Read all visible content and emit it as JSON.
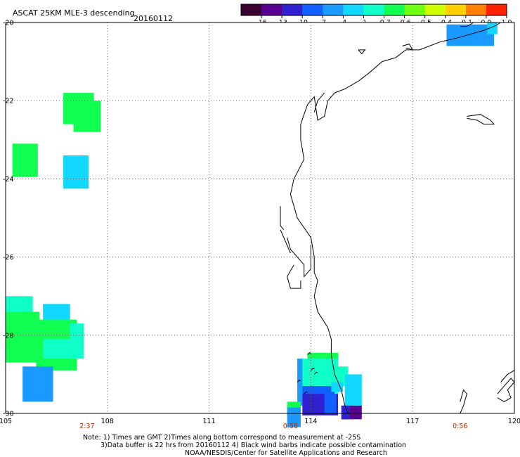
{
  "header": {
    "title": "ASCAT 25KM MLE-3 descending",
    "date": "20160112"
  },
  "colorbar": {
    "colors": [
      "#3a0030",
      "#5a0090",
      "#3020d0",
      "#1060ff",
      "#1a9aff",
      "#10d8ff",
      "#10ffc8",
      "#10ff50",
      "#70ff10",
      "#d0ff00",
      "#ffd000",
      "#ff8000",
      "#ff2000"
    ],
    "labels": [
      "-16",
      "-13",
      "-10",
      "-7",
      "-4",
      "-1",
      "-0.7",
      "-0.6",
      "-0.5",
      "-0.4",
      "-0.1",
      "0.0",
      "1.0"
    ]
  },
  "axes": {
    "lon_ticks": [
      "105",
      "108",
      "111",
      "114",
      "117",
      "120"
    ],
    "lat_ticks": [
      "-20",
      "-22",
      "-24",
      "-26",
      "-28",
      "-30"
    ],
    "lon_range": [
      105,
      120
    ],
    "lat_range": [
      -20,
      -30
    ]
  },
  "pass_times": [
    {
      "label": "2:37",
      "lon": 107.4
    },
    {
      "label": "0:58",
      "lon": 113.4
    },
    {
      "label": "0:56",
      "lon": 118.4
    }
  ],
  "footnote": {
    "line1": "Note: 1) Times are GMT 2)Times along bottom correspond to measurement at -25S",
    "line2": "3)Data buffer is 22 hrs from 20160112 4) Black wind barbs indicate possible contamination",
    "line3": "NOAA/NESDIS/Center for Satellite Applications and Research"
  },
  "data_cells": [
    {
      "lon": 106.7,
      "lat": -21.8,
      "w": 0.9,
      "h": 0.8,
      "color": "#10ff50"
    },
    {
      "lon": 107.0,
      "lat": -22.0,
      "w": 0.8,
      "h": 0.8,
      "color": "#10ff50"
    },
    {
      "lon": 105.2,
      "lat": -23.1,
      "w": 0.75,
      "h": 0.85,
      "color": "#10ff50"
    },
    {
      "lon": 106.7,
      "lat": -23.4,
      "w": 0.75,
      "h": 0.85,
      "color": "#10d8ff"
    },
    {
      "lon": 105.0,
      "lat": -27.0,
      "w": 0.8,
      "h": 0.6,
      "color": "#10ffc8"
    },
    {
      "lon": 105.0,
      "lat": -27.4,
      "w": 1.0,
      "h": 1.3,
      "color": "#10ff50"
    },
    {
      "lon": 106.1,
      "lat": -27.2,
      "w": 0.8,
      "h": 0.45,
      "color": "#10d8ff"
    },
    {
      "lon": 105.9,
      "lat": -27.6,
      "w": 1.2,
      "h": 1.3,
      "color": "#10ff50"
    },
    {
      "lon": 106.9,
      "lat": -27.7,
      "w": 0.4,
      "h": 0.9,
      "color": "#10ffc8"
    },
    {
      "lon": 106.1,
      "lat": -28.1,
      "w": 0.8,
      "h": 0.5,
      "color": "#10ffc8"
    },
    {
      "lon": 105.5,
      "lat": -28.8,
      "w": 0.9,
      "h": 0.9,
      "color": "#1a9aff"
    },
    {
      "lon": 118.0,
      "lat": -20.05,
      "w": 1.4,
      "h": 0.55,
      "color": "#1a9aff"
    },
    {
      "lon": 119.2,
      "lat": -20.0,
      "w": 0.3,
      "h": 0.3,
      "color": "#10d8ff"
    },
    {
      "lon": 113.9,
      "lat": -28.45,
      "w": 0.9,
      "h": 0.25,
      "color": "#10ff50"
    },
    {
      "lon": 113.6,
      "lat": -28.6,
      "w": 1.2,
      "h": 0.95,
      "color": "#10ffc8"
    },
    {
      "lon": 114.5,
      "lat": -28.8,
      "w": 0.6,
      "h": 0.5,
      "color": "#10ffc8"
    },
    {
      "lon": 115.0,
      "lat": -29.0,
      "w": 0.5,
      "h": 0.8,
      "color": "#10d8ff"
    },
    {
      "lon": 113.6,
      "lat": -28.6,
      "w": 0.15,
      "h": 1.2,
      "color": "#1a9aff"
    },
    {
      "lon": 113.75,
      "lat": -29.3,
      "w": 0.95,
      "h": 0.45,
      "color": "#1060ff"
    },
    {
      "lon": 113.75,
      "lat": -29.5,
      "w": 1.05,
      "h": 0.55,
      "color": "#3020d0"
    },
    {
      "lon": 114.6,
      "lat": -29.2,
      "w": 0.35,
      "h": 0.25,
      "color": "#10d8ff"
    },
    {
      "lon": 114.4,
      "lat": -29.5,
      "w": 0.35,
      "h": 0.5,
      "color": "#1060ff"
    },
    {
      "lon": 113.3,
      "lat": -29.7,
      "w": 0.4,
      "h": 0.35,
      "color": "#10ff50"
    },
    {
      "lon": 113.3,
      "lat": -29.85,
      "w": 0.4,
      "h": 0.5,
      "color": "#1a9aff"
    },
    {
      "lon": 114.9,
      "lat": -29.8,
      "w": 0.6,
      "h": 0.35,
      "color": "#5a0090"
    },
    {
      "lon": 114.9,
      "lat": -29.8,
      "w": 0.25,
      "h": 0.35,
      "color": "#3020d0"
    }
  ],
  "coastline": [
    [
      [
        119.6,
        -20.0
      ],
      [
        119.4,
        -20.1
      ],
      [
        119.1,
        -20.2
      ],
      [
        118.7,
        -20.3
      ],
      [
        118.3,
        -20.4
      ],
      [
        117.8,
        -20.5
      ],
      [
        117.5,
        -20.6
      ],
      [
        117.2,
        -20.7
      ],
      [
        116.8,
        -20.7
      ],
      [
        116.5,
        -20.9
      ],
      [
        116.1,
        -21.0
      ],
      [
        115.7,
        -21.3
      ],
      [
        115.4,
        -21.5
      ],
      [
        115.0,
        -21.7
      ],
      [
        114.7,
        -21.8
      ],
      [
        114.5,
        -22.0
      ],
      [
        114.4,
        -22.4
      ],
      [
        114.2,
        -22.5
      ],
      [
        114.1,
        -21.9
      ],
      [
        113.9,
        -22.1
      ],
      [
        113.7,
        -22.6
      ],
      [
        113.7,
        -23.0
      ],
      [
        113.8,
        -23.5
      ],
      [
        113.5,
        -24.0
      ],
      [
        113.4,
        -24.4
      ],
      [
        113.5,
        -24.7
      ],
      [
        113.6,
        -25.0
      ],
      [
        114.0,
        -25.5
      ],
      [
        114.1,
        -26.0
      ],
      [
        114.1,
        -26.4
      ],
      [
        114.2,
        -26.6
      ],
      [
        114.1,
        -27.0
      ],
      [
        114.2,
        -27.4
      ],
      [
        114.5,
        -27.8
      ],
      [
        114.6,
        -28.1
      ],
      [
        114.6,
        -28.5
      ],
      [
        114.7,
        -29.0
      ],
      [
        114.9,
        -29.4
      ],
      [
        115.0,
        -29.8
      ],
      [
        115.1,
        -30.0
      ]
    ],
    [
      [
        113.3,
        -25.5
      ],
      [
        113.4,
        -25.8
      ],
      [
        113.6,
        -26.0
      ],
      [
        113.8,
        -26.2
      ],
      [
        113.8,
        -26.5
      ],
      [
        114.0,
        -26.3
      ],
      [
        114.0,
        -25.9
      ],
      [
        114.0,
        -25.7
      ]
    ],
    [
      [
        113.5,
        -26.2
      ],
      [
        113.3,
        -26.5
      ],
      [
        113.4,
        -26.8
      ],
      [
        113.7,
        -26.8
      ],
      [
        113.7,
        -26.6
      ]
    ],
    [
      [
        113.1,
        -24.7
      ],
      [
        113.1,
        -25.2
      ],
      [
        113.2,
        -25.3
      ]
    ],
    [
      [
        113.1,
        -25.3
      ],
      [
        113.3,
        -25.7
      ],
      [
        113.4,
        -25.9
      ]
    ],
    [
      [
        114.1,
        -22.3
      ],
      [
        114.2,
        -22.0
      ],
      [
        114.4,
        -21.8
      ]
    ],
    [
      [
        115.4,
        -20.7
      ],
      [
        115.6,
        -20.7
      ],
      [
        115.5,
        -20.8
      ],
      [
        115.4,
        -20.7
      ]
    ],
    [
      [
        116.7,
        -20.6
      ],
      [
        116.9,
        -20.55
      ],
      [
        117.0,
        -20.7
      ],
      [
        116.8,
        -20.65
      ]
    ],
    [
      [
        118.8,
        -20.0
      ],
      [
        118.6,
        -20.1
      ],
      [
        118.4,
        -20.1
      ]
    ],
    [
      [
        118.6,
        -22.4
      ],
      [
        119.0,
        -22.35
      ],
      [
        119.3,
        -22.5
      ],
      [
        119.4,
        -22.6
      ],
      [
        119.1,
        -22.6
      ],
      [
        118.9,
        -22.5
      ],
      [
        118.6,
        -22.45
      ]
    ],
    [
      [
        118.4,
        -29.7
      ],
      [
        118.5,
        -29.4
      ],
      [
        118.6,
        -29.5
      ],
      [
        118.5,
        -29.8
      ],
      [
        118.4,
        -30.0
      ]
    ],
    [
      [
        119.5,
        -29.5
      ],
      [
        119.7,
        -29.3
      ],
      [
        119.9,
        -29.1
      ],
      [
        120.0,
        -29.2
      ],
      [
        119.8,
        -29.4
      ],
      [
        119.9,
        -29.6
      ],
      [
        119.7,
        -29.7
      ],
      [
        119.5,
        -29.6
      ]
    ],
    [
      [
        119.6,
        -29.2
      ],
      [
        119.8,
        -29.0
      ],
      [
        120.0,
        -28.9
      ]
    ]
  ],
  "barbs": [
    {
      "lon": 113.9,
      "lat": -28.5
    },
    {
      "lon": 114.0,
      "lat": -28.9
    },
    {
      "lon": 114.1,
      "lat": -29.0
    },
    {
      "lon": 113.6,
      "lat": -29.2
    },
    {
      "lon": 113.8,
      "lat": -29.5
    }
  ],
  "styles": {
    "label_color": "#b22a00",
    "grid_color": "#666666"
  }
}
